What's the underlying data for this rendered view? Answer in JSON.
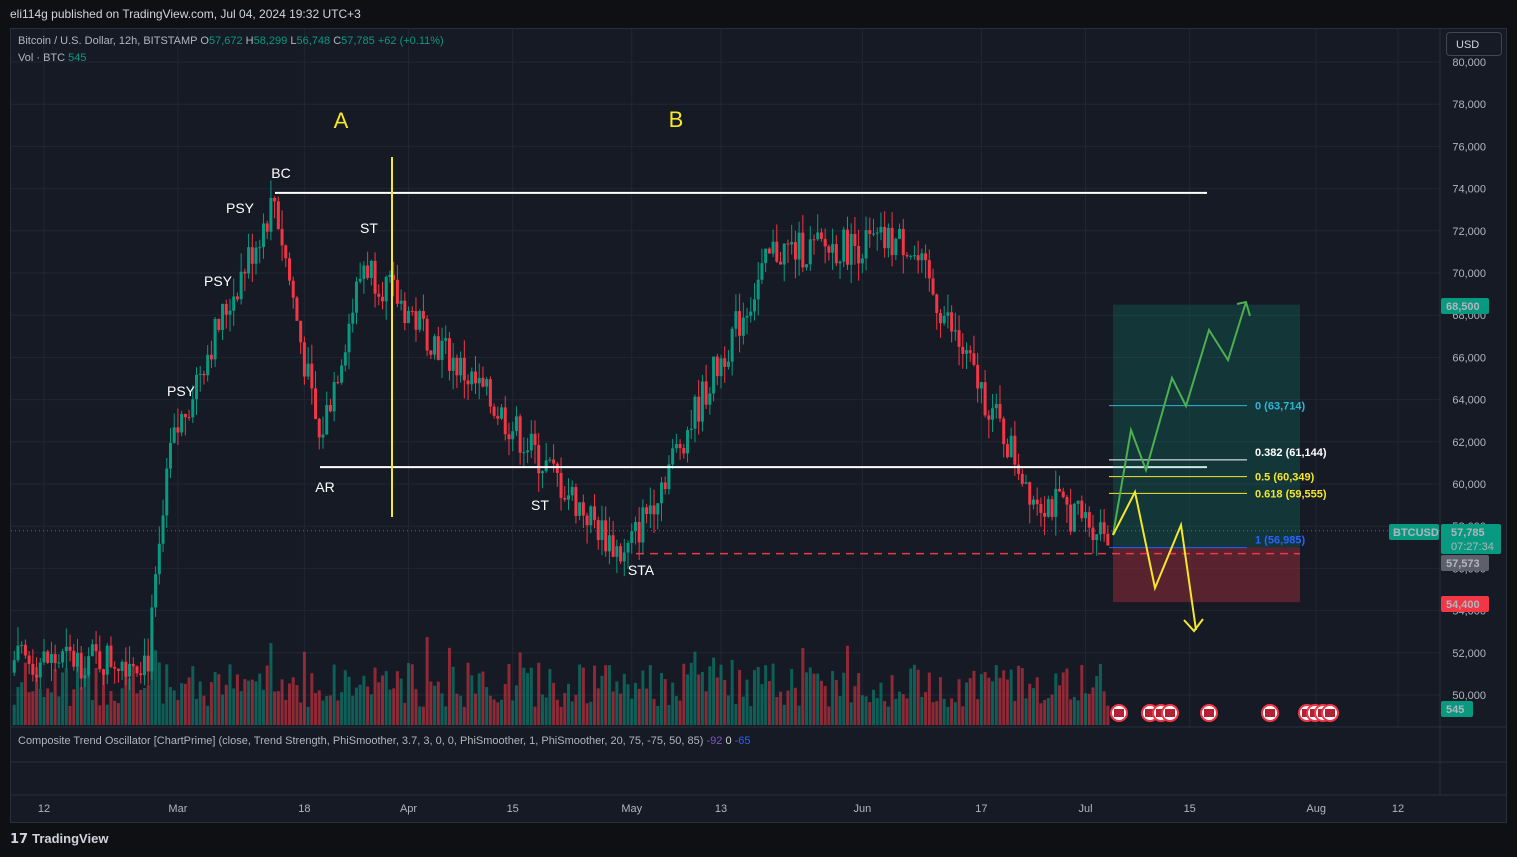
{
  "header": "eli114g published on TradingView.com, Jul 04, 2024 19:32 UTC+3",
  "symbol": {
    "name": "Bitcoin / U.S. Dollar, 12h, BITSTAMP",
    "o_label": "O",
    "o": "57,672",
    "h_label": "H",
    "h": "58,299",
    "l_label": "L",
    "l": "56,748",
    "c_label": "C",
    "c": "57,785",
    "change": "+62 (+0.11%)"
  },
  "volume": {
    "label": "Vol · BTC",
    "value": "545"
  },
  "currency": "USD",
  "oscillator": {
    "title": "Composite Trend Oscillator [ChartPrime] (close, Trend Strength, PhiSmoother, 3.7, 3, 0, 0, PhiSmoother, 1, PhiSmoother, 20, 75, -75, 50, 85)",
    "v1": "-92",
    "v2": "0",
    "v3": "-65"
  },
  "footer": {
    "logo_text": "TradingView"
  },
  "price_badges": {
    "target": "68,500",
    "stop": "54,400",
    "symbol": "BTCUSD",
    "last": "57,785",
    "countdown": "07:27:34",
    "low_marker": "57,573",
    "volume": "545"
  },
  "colors": {
    "up": "#089981",
    "down": "#f23645",
    "background": "#161a25",
    "grid": "#232632",
    "annotation": "#f5e72a"
  },
  "chart_data": {
    "type": "candlestick",
    "title": "",
    "ylim": [
      49500,
      81000
    ],
    "y_ticks": [
      50000,
      52000,
      54000,
      56000,
      58000,
      60000,
      62000,
      64000,
      66000,
      68000,
      70000,
      72000,
      74000,
      76000,
      78000,
      80000
    ],
    "y_tick_labels": [
      "50,000",
      "52,000",
      "54,000",
      "56,000",
      "58,000",
      "60,000",
      "62,000",
      "64,000",
      "66,000",
      "68,000",
      "70,000",
      "72,000",
      "74,000",
      "76,000",
      "78,000",
      "80,000"
    ],
    "x_ticks": [
      "12",
      "Mar",
      "18",
      "Apr",
      "15",
      "May",
      "13",
      "Jun",
      "17",
      "Jul",
      "15",
      "Aug",
      "12"
    ],
    "x_range": [
      "2024-02-05",
      "2024-08-15"
    ],
    "grid": true,
    "key_points": [
      {
        "date": "2024-02-26",
        "close": 51800
      },
      {
        "date": "2024-02-29",
        "close": 61500
      },
      {
        "date": "2024-03-04",
        "close": 65500
      },
      {
        "date": "2024-03-14",
        "close": 73500
      },
      {
        "date": "2024-03-20",
        "close": 62000
      },
      {
        "date": "2024-03-26",
        "close": 70500
      },
      {
        "date": "2024-04-13",
        "close": 63500
      },
      {
        "date": "2024-04-30",
        "close": 56500
      },
      {
        "date": "2024-05-20",
        "close": 71000
      },
      {
        "date": "2024-06-07",
        "close": 71500
      },
      {
        "date": "2024-06-24",
        "close": 59500
      },
      {
        "date": "2024-07-04",
        "close": 57785
      }
    ],
    "annotations": {
      "phases": [
        "A",
        "B"
      ],
      "wyckoff_labels": [
        "PSY",
        "PSY",
        "PSY",
        "BC",
        "AR",
        "ST",
        "ST",
        "STA"
      ],
      "resistance": 73800,
      "support": 60800,
      "sta_low": 56700,
      "fib_levels": [
        {
          "label": "0 (63,714)",
          "value": 63714
        },
        {
          "label": "0.382 (61,144)",
          "value": 61144
        },
        {
          "label": "0.5 (60,349)",
          "value": 60349
        },
        {
          "label": "0.618 (59,555)",
          "value": 59555
        },
        {
          "label": "1 (56,985)",
          "value": 56985
        }
      ],
      "target": 68500,
      "stop": 54400
    }
  }
}
